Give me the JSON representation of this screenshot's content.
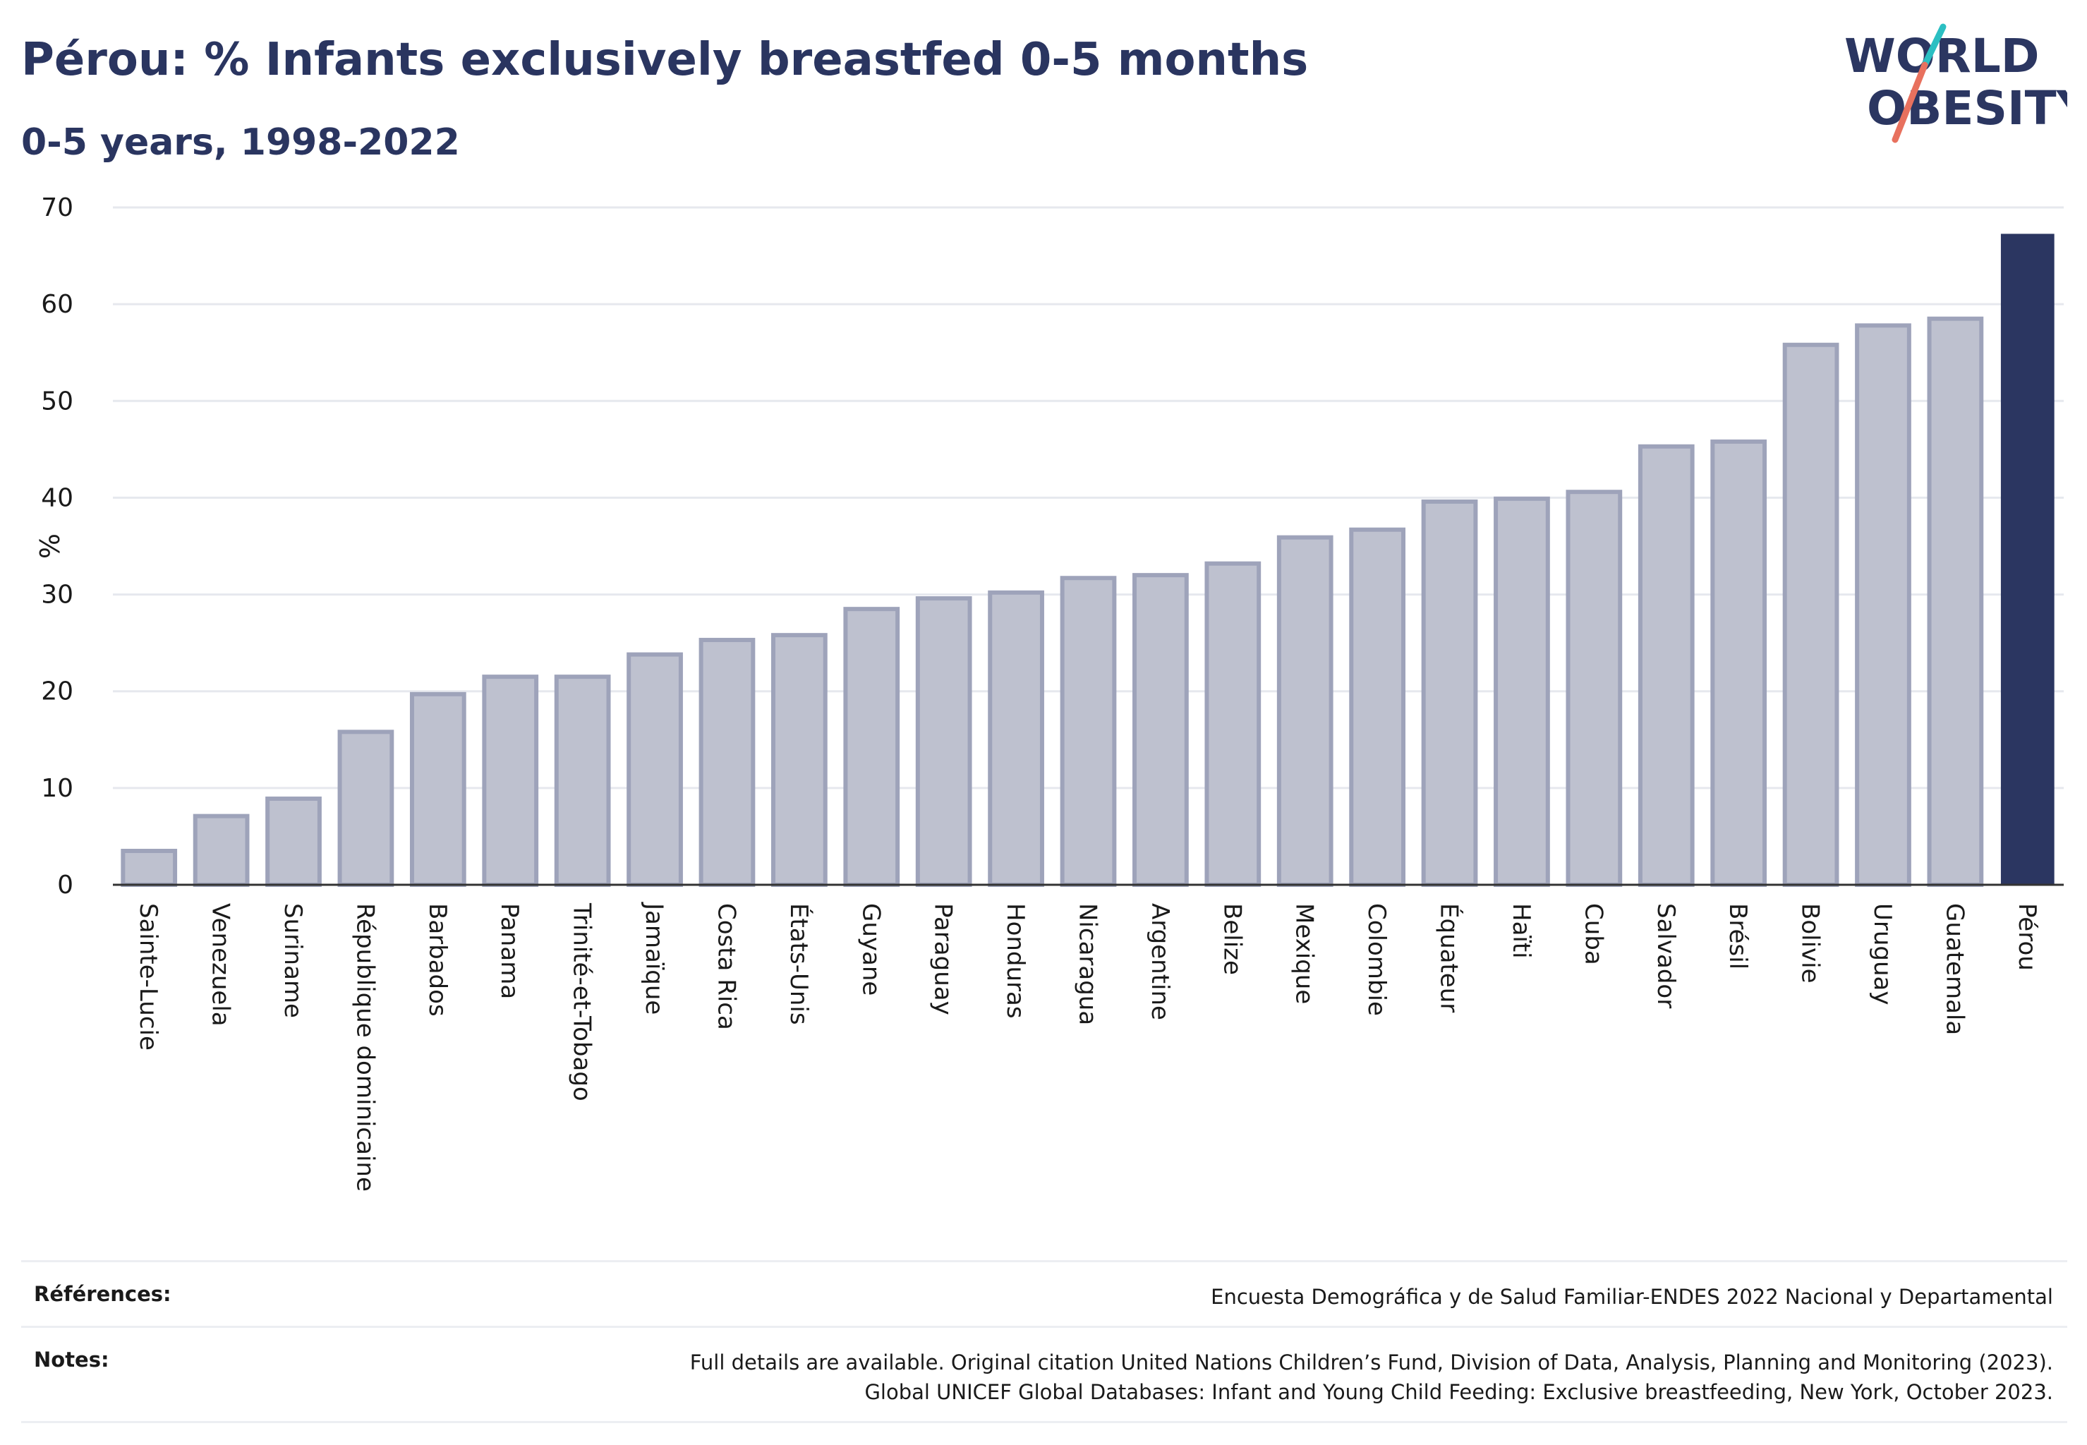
{
  "header": {
    "title": "Pérou: % Infants exclusively breastfed 0-5 months",
    "subtitle": "0-5 years, 1998-2022"
  },
  "logo": {
    "line1": "WORLD",
    "line2": "OBESITY"
  },
  "colors": {
    "highlight_bar": "#2b3661",
    "other_bar": "#bec1cf",
    "other_bar_border": "#9ea3ba",
    "logo_text": "#2b3661",
    "logo_slash_red": "#e8715e",
    "logo_slash_teal": "#2bbfc2"
  },
  "chart_data": {
    "type": "bar",
    "title": "Pérou: % Infants exclusively breastfed 0-5 months",
    "subtitle": "0-5 years, 1998-2022",
    "ylabel": "%",
    "xlabel": "",
    "ylim": [
      0,
      70
    ],
    "yticks": [
      0,
      10,
      20,
      30,
      40,
      50,
      60,
      70
    ],
    "grid": true,
    "highlight": "Pérou",
    "categories": [
      "Sainte-Lucie",
      "Venezuela",
      "Suriname",
      "République dominicaine",
      "Barbados",
      "Panama",
      "Trinité-et-Tobago",
      "Jamaïque",
      "Costa Rica",
      "États-Unis",
      "Guyane",
      "Paraguay",
      "Honduras",
      "Nicaragua",
      "Argentine",
      "Belize",
      "Mexique",
      "Colombie",
      "Équateur",
      "Haïti",
      "Cuba",
      "Salvador",
      "Brésil",
      "Bolivie",
      "Uruguay",
      "Guatemala",
      "Pérou"
    ],
    "values": [
      3.5,
      7.1,
      8.9,
      15.8,
      19.7,
      21.5,
      21.5,
      23.8,
      25.3,
      25.8,
      28.5,
      29.6,
      30.2,
      31.7,
      32.0,
      33.2,
      35.9,
      36.7,
      39.6,
      39.9,
      40.6,
      45.3,
      45.8,
      55.8,
      57.8,
      58.5,
      67.2
    ]
  },
  "footer": {
    "references_label": "Références:",
    "references_text": "Encuesta Demográfica y de Salud Familiar-ENDES 2022 Nacional y Departamental",
    "notes_label": "Notes:",
    "notes_line1": "Full details are available. Original citation United Nations Children’s Fund, Division of Data, Analysis, Planning and Monitoring (2023).",
    "notes_line2": "Global UNICEF Global Databases: Infant and Young Child Feeding: Exclusive breastfeeding, New York, October 2023."
  }
}
